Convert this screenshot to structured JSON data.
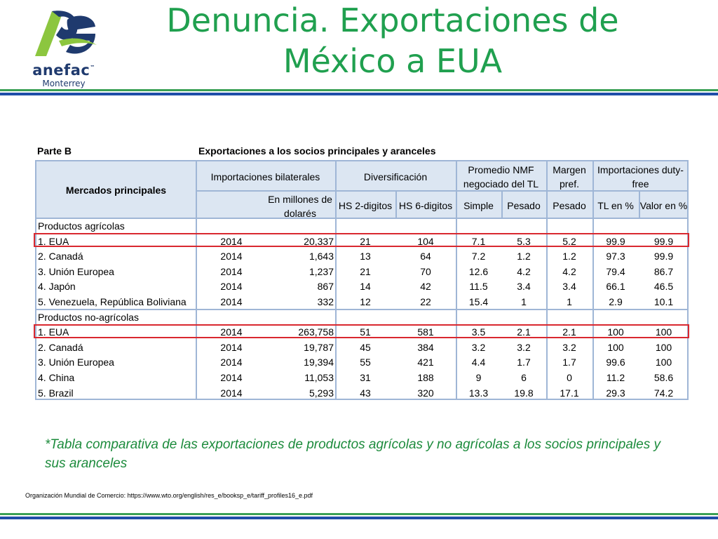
{
  "logo": {
    "name": "anefac",
    "tm": "™",
    "city": "Monterrey"
  },
  "title": {
    "line1": "Denuncia. Exportaciones de",
    "line2": "México a EUA"
  },
  "table": {
    "part": "Parte B",
    "caption": "Exportaciones a los socios principales y aranceles",
    "headers": {
      "markets": "Mercados principales",
      "bilateral": "Importaciones bilaterales",
      "millions_line1": "En millones de",
      "millions_line2": "dolarés",
      "diversification": "Diversificación",
      "hs2": "HS 2-digitos",
      "hs6": "HS 6-digitos",
      "nmf_line1": "Promedio NMF",
      "nmf_line2": "negociado del TL",
      "simple": "Simple",
      "pesado": "Pesado",
      "margin_line1": "Margen",
      "margin_line2": "pref.",
      "margin_pesado": "Pesado",
      "dutyfree_line1": "Importaciones duty-",
      "dutyfree_line2": "free",
      "tl_pct": "TL en %",
      "valor_pct": "Valor en %"
    },
    "sections": [
      {
        "label": "Productos agrícolas",
        "rows": [
          {
            "market": "1. EUA",
            "year": "2014",
            "value": "20,337",
            "hs2": "21",
            "hs6": "104",
            "simple": "7.1",
            "pesado": "5.3",
            "margin": "5.2",
            "tl": "99.9",
            "valor": "99.9"
          },
          {
            "market": "2. Canadá",
            "year": "2014",
            "value": "1,643",
            "hs2": "13",
            "hs6": "64",
            "simple": "7.2",
            "pesado": "1.2",
            "margin": "1.2",
            "tl": "97.3",
            "valor": "99.9"
          },
          {
            "market": "3. Unión Europea",
            "year": "2014",
            "value": "1,237",
            "hs2": "21",
            "hs6": "70",
            "simple": "12.6",
            "pesado": "4.2",
            "margin": "4.2",
            "tl": "79.4",
            "valor": "86.7"
          },
          {
            "market": "4. Japón",
            "year": "2014",
            "value": "867",
            "hs2": "14",
            "hs6": "42",
            "simple": "11.5",
            "pesado": "3.4",
            "margin": "3.4",
            "tl": "66.1",
            "valor": "46.5"
          },
          {
            "market": "5. Venezuela, República Boliviana",
            "year": "2014",
            "value": "332",
            "hs2": "12",
            "hs6": "22",
            "simple": "15.4",
            "pesado": "1",
            "margin": "1",
            "tl": "2.9",
            "valor": "10.1"
          }
        ]
      },
      {
        "label": "Productos no-agrícolas",
        "rows": [
          {
            "market": "1. EUA",
            "year": "2014",
            "value": "263,758",
            "hs2": "51",
            "hs6": "581",
            "simple": "3.5",
            "pesado": "2.1",
            "margin": "2.1",
            "tl": "100",
            "valor": "100"
          },
          {
            "market": "2. Canadá",
            "year": "2014",
            "value": "19,787",
            "hs2": "45",
            "hs6": "384",
            "simple": "3.2",
            "pesado": "3.2",
            "margin": "3.2",
            "tl": "100",
            "valor": "100"
          },
          {
            "market": "3. Unión Europea",
            "year": "2014",
            "value": "19,394",
            "hs2": "55",
            "hs6": "421",
            "simple": "4.4",
            "pesado": "1.7",
            "margin": "1.7",
            "tl": "99.6",
            "valor": "100"
          },
          {
            "market": "4. China",
            "year": "2014",
            "value": "11,053",
            "hs2": "31",
            "hs6": "188",
            "simple": "9",
            "pesado": "6",
            "margin": "0",
            "tl": "11.2",
            "valor": "58.6"
          },
          {
            "market": "5. Brazil",
            "year": "2014",
            "value": "5,293",
            "hs2": "43",
            "hs6": "320",
            "simple": "13.3",
            "pesado": "19.8",
            "margin": "17.1",
            "tl": "29.3",
            "valor": "74.2"
          }
        ]
      }
    ]
  },
  "footnote": "*Tabla comparativa de las exportaciones de productos agrícolas y no agrícolas a los socios principales y sus aranceles",
  "source": "Organización Mundial de Comercio: https://www.wto.org/english/res_e/booksp_e/tariff_profiles16_e.pdf",
  "colors": {
    "title_green": "#20a04f",
    "rule_blue": "#1f4ea8",
    "highlight_red": "#d9282f",
    "header_fill": "#dce6f2"
  }
}
